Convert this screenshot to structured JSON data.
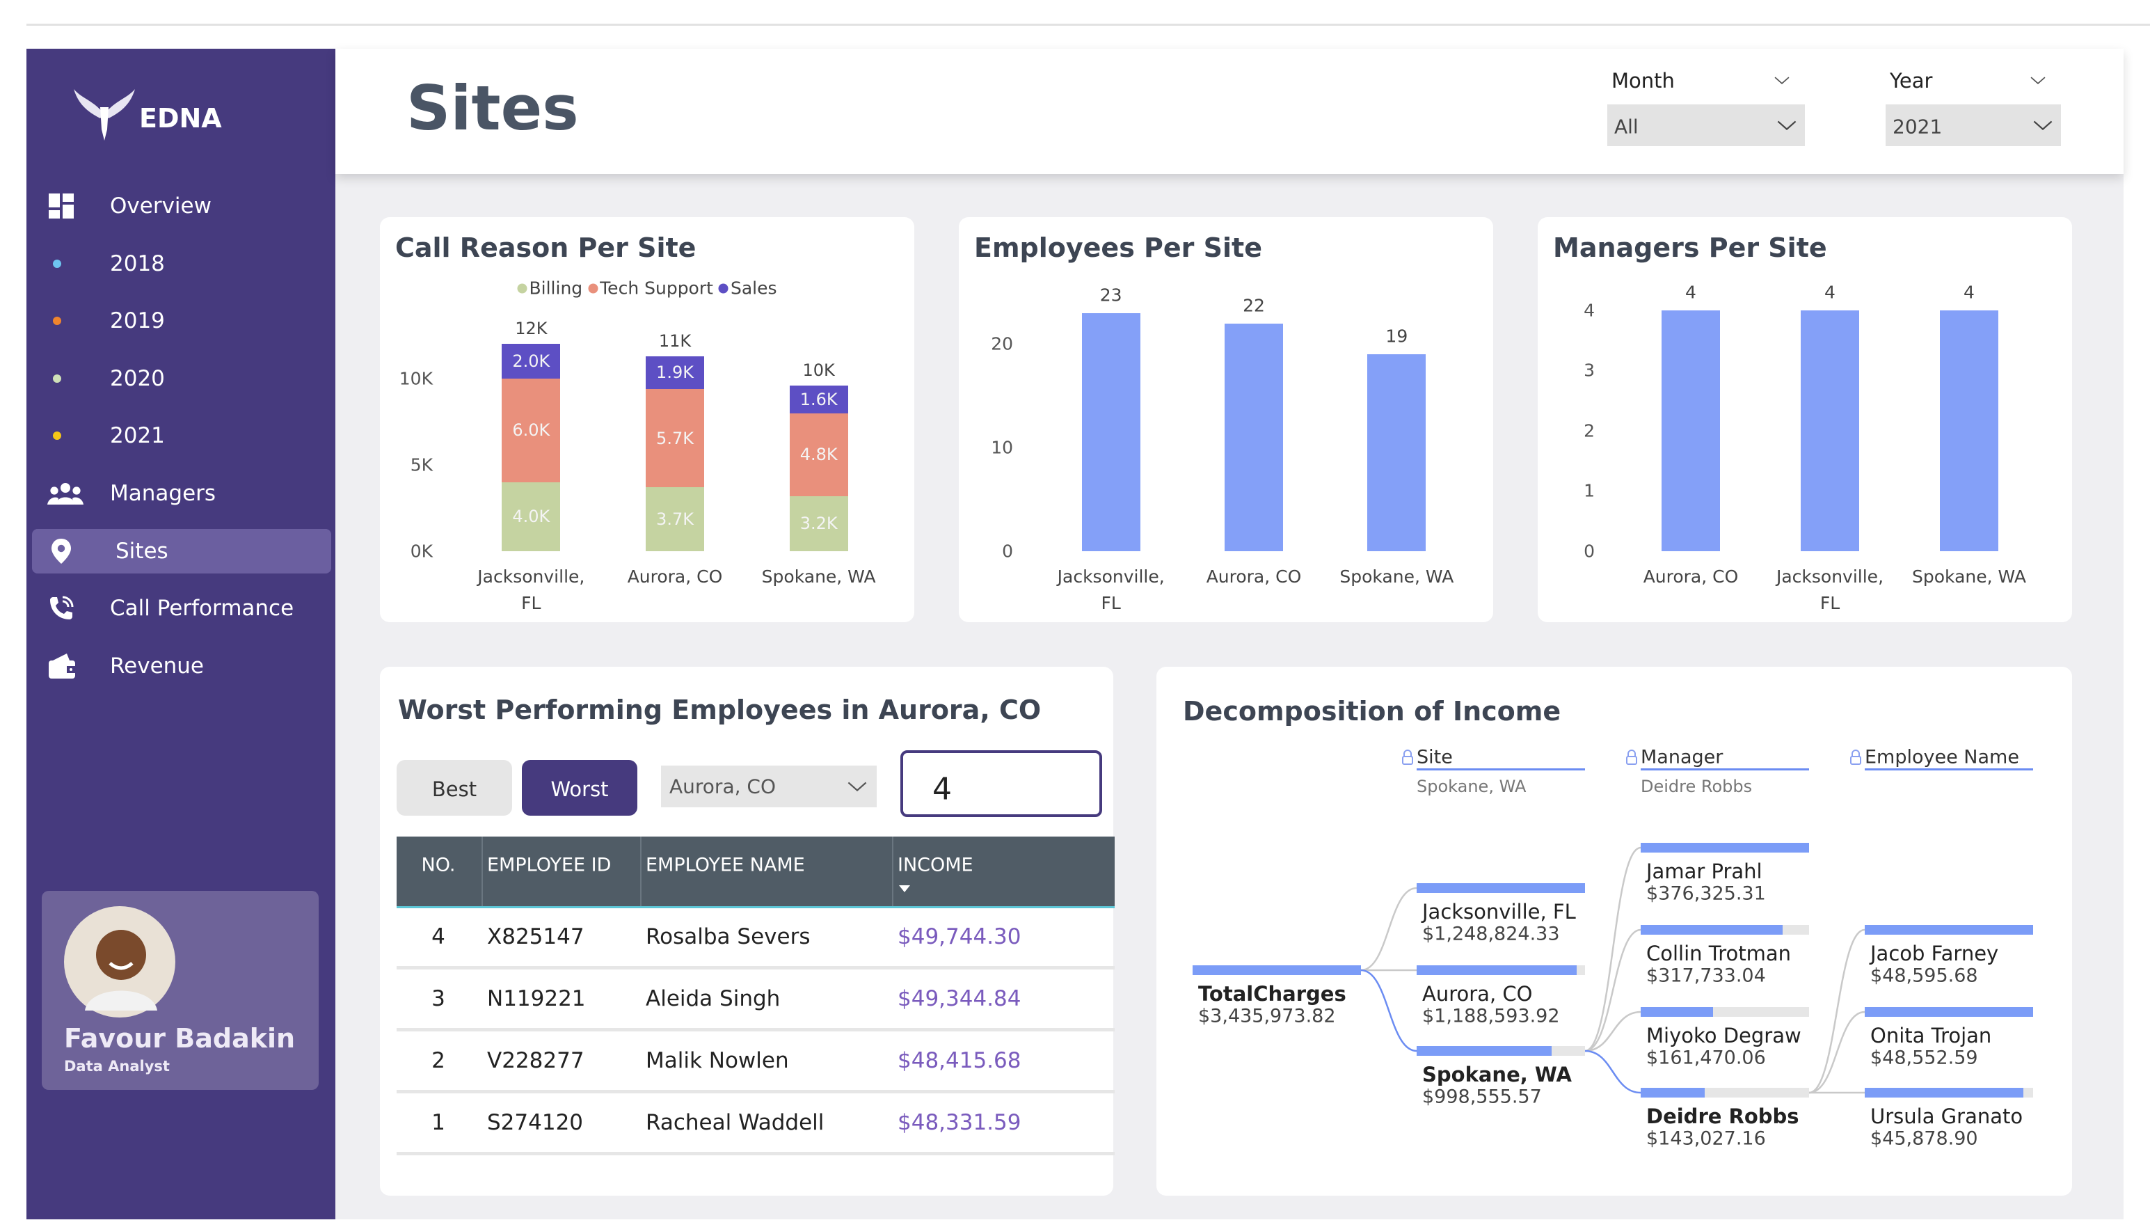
{
  "sidebar": {
    "brand": "EDNA",
    "nav": [
      "Overview",
      "2018",
      "2019",
      "2020",
      "2021",
      "Managers",
      "Sites",
      "Call Performance",
      "Revenue"
    ],
    "active": "Sites",
    "profile": {
      "name": "Favour Badakin",
      "role": "Data Analyst"
    }
  },
  "header": {
    "title": "Sites",
    "filters": [
      {
        "label": "Month",
        "value": "All"
      },
      {
        "label": "Year",
        "value": "2021"
      }
    ]
  },
  "chart_data": [
    {
      "type": "bar",
      "stacked": true,
      "title": "Call Reason Per Site",
      "categories": [
        "Jacksonville, FL",
        "Aurora, CO",
        "Spokane, WA"
      ],
      "series": [
        {
          "name": "Billing",
          "color": "#c5d3a1",
          "values": [
            4000,
            3700,
            3200
          ],
          "value_labels": [
            "4.0K",
            "3.7K",
            "3.2K"
          ]
        },
        {
          "name": "Tech Support",
          "color": "#e9907c",
          "values": [
            6000,
            5700,
            4800
          ],
          "value_labels": [
            "6.0K",
            "5.7K",
            "4.8K"
          ]
        },
        {
          "name": "Sales",
          "color": "#5d4fc4",
          "values": [
            2000,
            1900,
            1600
          ],
          "value_labels": [
            "2.0K",
            "1.9K",
            "1.6K"
          ]
        }
      ],
      "totals": [
        12000,
        11300,
        9600
      ],
      "total_labels": [
        "12K",
        "11K",
        "10K"
      ],
      "ylim": [
        0,
        15000
      ],
      "yticks": [
        {
          "value": 0,
          "label": "0K"
        },
        {
          "value": 5000,
          "label": "5K"
        },
        {
          "value": 10000,
          "label": "10K"
        }
      ],
      "legend": "top"
    },
    {
      "type": "bar",
      "title": "Employees Per Site",
      "categories": [
        "Jacksonville, FL",
        "Aurora, CO",
        "Spokane, WA"
      ],
      "values": [
        23,
        22,
        19
      ],
      "color": "#84a0f8",
      "ylim": [
        0,
        25
      ],
      "yticks": [
        0,
        10,
        20
      ]
    },
    {
      "type": "bar",
      "title": "Managers Per Site",
      "categories": [
        "Aurora, CO",
        "Jacksonville, FL",
        "Spokane, WA"
      ],
      "values": [
        4,
        4,
        4
      ],
      "color": "#84a0f8",
      "ylim": [
        0,
        4.3
      ],
      "yticks": [
        0,
        1,
        2,
        3,
        4
      ]
    }
  ],
  "table": {
    "title": "Worst Performing Employees in Aurora, CO",
    "buttons": [
      "Best",
      "Worst"
    ],
    "active_button": "Worst",
    "site_filter": "Aurora, CO",
    "count": "4",
    "columns": [
      "NO.",
      "EMPLOYEE ID",
      "EMPLOYEE NAME",
      "INCOME"
    ],
    "rows": [
      [
        "4",
        "X825147",
        "Rosalba Severs",
        "$49,744.30"
      ],
      [
        "3",
        "N119221",
        "Aleida Singh",
        "$49,344.84"
      ],
      [
        "2",
        "V228277",
        "Malik Nowlen",
        "$48,415.68"
      ],
      [
        "1",
        "S274120",
        "Racheal Waddell",
        "$48,331.59"
      ]
    ]
  },
  "decomposition": {
    "title": "Decomposition of Income",
    "levels": [
      {
        "name": "Site",
        "selected": "Spokane, WA"
      },
      {
        "name": "Manager",
        "selected": "Deidre Robbs"
      },
      {
        "name": "Employee Name"
      }
    ],
    "root": {
      "label": "TotalCharges",
      "value": 3435973.82,
      "value_label": "$3,435,973.82"
    },
    "sites": [
      {
        "label": "Jacksonville, FL",
        "value": 1248824.33,
        "value_label": "$1,248,824.33"
      },
      {
        "label": "Aurora, CO",
        "value": 1188593.92,
        "value_label": "$1,188,593.92"
      },
      {
        "label": "Spokane, WA",
        "value": 998555.57,
        "value_label": "$998,555.57"
      }
    ],
    "managers": [
      {
        "label": "Jamar Prahl",
        "value": 376325.31,
        "value_label": "$376,325.31"
      },
      {
        "label": "Collin Trotman",
        "value": 317733.04,
        "value_label": "$317,733.04"
      },
      {
        "label": "Miyoko Degraw",
        "value": 161470.06,
        "value_label": "$161,470.06"
      },
      {
        "label": "Deidre Robbs",
        "value": 143027.16,
        "value_label": "$143,027.16"
      }
    ],
    "employees": [
      {
        "label": "Jacob Farney",
        "value": 48595.68,
        "value_label": "$48,595.68"
      },
      {
        "label": "Onita Trojan",
        "value": 48552.59,
        "value_label": "$48,552.59"
      },
      {
        "label": "Ursula Granato",
        "value": 45878.9,
        "value_label": "$45,878.90"
      }
    ]
  }
}
